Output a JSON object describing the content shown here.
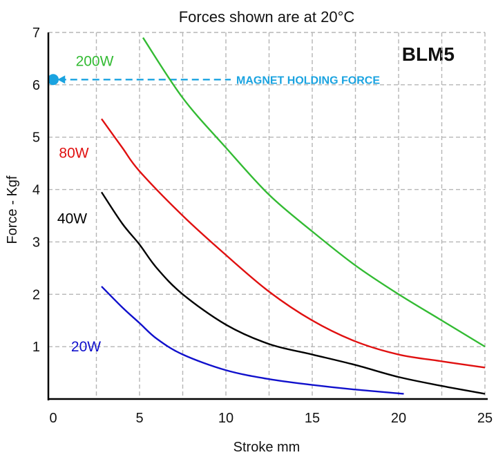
{
  "chart_data": {
    "type": "line",
    "title": "Forces shown are at 20°C",
    "model": "BLM5",
    "xlabel": "Stroke mm",
    "ylabel": "Force - Kgf",
    "xlim": [
      0,
      25
    ],
    "ylim": [
      0,
      7
    ],
    "x_ticks": [
      "0",
      "5",
      "10",
      "15",
      "20",
      "25"
    ],
    "y_ticks": [
      "1",
      "2",
      "3",
      "4",
      "5",
      "6",
      "7"
    ],
    "grid": true,
    "series": [
      {
        "name": "200W",
        "color": "#33bb33",
        "points": [
          [
            5.2,
            6.9
          ],
          [
            7.5,
            5.75
          ],
          [
            10,
            4.8
          ],
          [
            12.5,
            3.9
          ],
          [
            15,
            3.2
          ],
          [
            17.5,
            2.55
          ],
          [
            20,
            2.0
          ],
          [
            22.5,
            1.5
          ],
          [
            25,
            1.0
          ]
        ]
      },
      {
        "name": "80W",
        "color": "#e01010",
        "points": [
          [
            2.8,
            5.35
          ],
          [
            4,
            4.8
          ],
          [
            5,
            4.35
          ],
          [
            7.5,
            3.5
          ],
          [
            10,
            2.75
          ],
          [
            12.5,
            2.05
          ],
          [
            15,
            1.5
          ],
          [
            17.5,
            1.1
          ],
          [
            20,
            0.85
          ],
          [
            22.5,
            0.72
          ],
          [
            25,
            0.6
          ]
        ]
      },
      {
        "name": "40W",
        "color": "#000000",
        "points": [
          [
            2.8,
            3.95
          ],
          [
            4,
            3.35
          ],
          [
            5,
            2.95
          ],
          [
            6,
            2.5
          ],
          [
            7.5,
            2.0
          ],
          [
            10,
            1.42
          ],
          [
            12.5,
            1.05
          ],
          [
            15,
            0.85
          ],
          [
            17.5,
            0.65
          ],
          [
            20,
            0.42
          ],
          [
            22.5,
            0.25
          ],
          [
            25,
            0.1
          ]
        ]
      },
      {
        "name": "20W",
        "color": "#1010cc",
        "points": [
          [
            2.8,
            2.15
          ],
          [
            4,
            1.75
          ],
          [
            5,
            1.45
          ],
          [
            6,
            1.15
          ],
          [
            7.5,
            0.85
          ],
          [
            10,
            0.55
          ],
          [
            12.5,
            0.38
          ],
          [
            15,
            0.27
          ],
          [
            17.5,
            0.18
          ],
          [
            20.3,
            0.1
          ]
        ]
      }
    ],
    "series_label_positions": {
      "200W": [
        2.4,
        6.45
      ],
      "80W": [
        1.2,
        4.7
      ],
      "40W": [
        1.1,
        3.45
      ],
      "20W": [
        1.9,
        1.0
      ]
    },
    "annotation": {
      "text": "MAGNET HOLDING FORCE",
      "y": 6.1,
      "color": "#1aa3e0"
    }
  }
}
